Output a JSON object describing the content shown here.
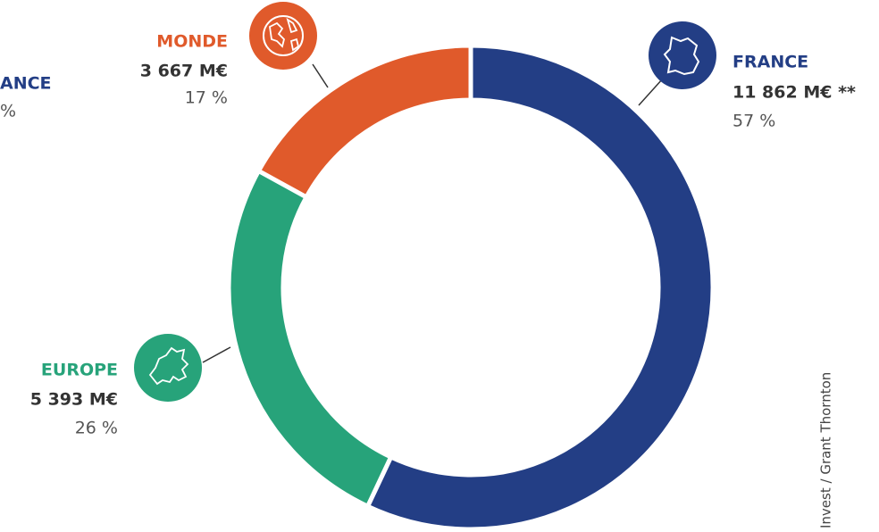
{
  "chart_data": {
    "type": "pie",
    "categories": [
      "FRANCE",
      "EUROPE",
      "MONDE"
    ],
    "values": [
      57,
      26,
      17
    ],
    "value_labels": [
      "57 %",
      "26 %",
      "17 %"
    ],
    "amounts": [
      11862,
      5393,
      3667
    ],
    "amount_labels": [
      "11 862 M€ **",
      "5 393 M€",
      "3 667 M€"
    ],
    "colors": [
      "#233e85",
      "#27a37a",
      "#e05a2b"
    ],
    "cut_off_texts": [
      "ANCE",
      "%"
    ],
    "source": "Invest / Grant Thornton"
  }
}
